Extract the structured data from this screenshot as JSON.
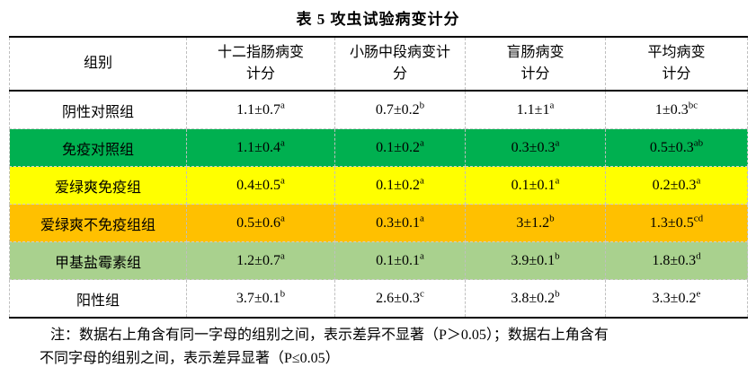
{
  "title": "表 5 攻虫试验病变计分",
  "colors": {
    "row_white": "#FFFFFF",
    "row_green": "#00B050",
    "row_yellow": "#FFFF00",
    "row_orange": "#FFC000",
    "row_light_green": "#A9D18E",
    "gridline": "#BFBFBF",
    "rule": "#000000"
  },
  "table": {
    "headers": [
      {
        "line1": "组别",
        "line2": ""
      },
      {
        "line1": "十二指肠病变",
        "line2": "计分"
      },
      {
        "line1": "小肠中段病变计",
        "line2": "分"
      },
      {
        "line1": "盲肠病变",
        "line2": "计分"
      },
      {
        "line1": "平均病变",
        "line2": "计分"
      }
    ],
    "rows": [
      {
        "group": "阴性对照组",
        "bg": "#FFFFFF",
        "cells": [
          {
            "v": "1.1±0.7",
            "sup": "a"
          },
          {
            "v": "0.7±0.2",
            "sup": "b"
          },
          {
            "v": "1.1±1",
            "sup": "a"
          },
          {
            "v": "1±0.3",
            "sup": "bc"
          }
        ]
      },
      {
        "group": "免疫对照组",
        "bg": "#00B050",
        "cells": [
          {
            "v": "1.1±0.4",
            "sup": "a"
          },
          {
            "v": "0.1±0.2",
            "sup": "a"
          },
          {
            "v": "0.3±0.3",
            "sup": "a"
          },
          {
            "v": "0.5±0.3",
            "sup": "ab"
          }
        ]
      },
      {
        "group": "爱绿爽免疫组",
        "bg": "#FFFF00",
        "cells": [
          {
            "v": "0.4±0.5",
            "sup": "a"
          },
          {
            "v": "0.1±0.2",
            "sup": "a"
          },
          {
            "v": "0.1±0.1",
            "sup": "a"
          },
          {
            "v": "0.2±0.3",
            "sup": "a"
          }
        ]
      },
      {
        "group": "爱绿爽不免疫组组",
        "bg": "#FFC000",
        "cells": [
          {
            "v": "0.5±0.6",
            "sup": "a"
          },
          {
            "v": "0.3±0.1",
            "sup": "a"
          },
          {
            "v": "3±1.2",
            "sup": "b"
          },
          {
            "v": "1.3±0.5",
            "sup": "cd"
          }
        ]
      },
      {
        "group": "甲基盐霉素组",
        "bg": "#A9D18E",
        "cells": [
          {
            "v": "1.2±0.7",
            "sup": "a"
          },
          {
            "v": "0.1±0.1",
            "sup": "a"
          },
          {
            "v": "3.9±0.1",
            "sup": "b"
          },
          {
            "v": "1.8±0.3",
            "sup": "d"
          }
        ]
      },
      {
        "group": "阳性组",
        "bg": "#FFFFFF",
        "cells": [
          {
            "v": "3.7±0.1",
            "sup": "b"
          },
          {
            "v": "2.6±0.3",
            "sup": "c"
          },
          {
            "v": "3.8±0.2",
            "sup": "b"
          },
          {
            "v": "3.3±0.2",
            "sup": "e"
          }
        ]
      }
    ]
  },
  "note": {
    "line1": "注：数据右上角含有同一字母的组别之间，表示差异不显著（P＞0.05）；数据右上角含有",
    "line2": "不同字母的组别之间，表示差异显著（P≤0.05）"
  }
}
